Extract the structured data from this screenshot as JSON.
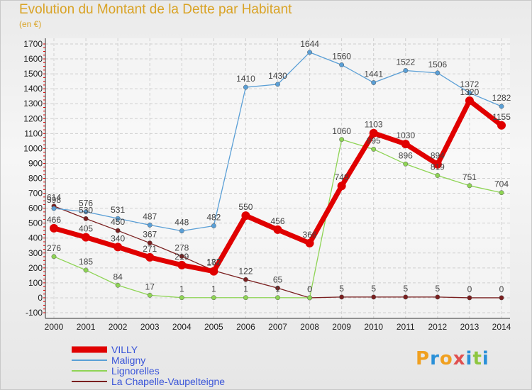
{
  "title": "Evolution du Montant de la Dette par Habitant",
  "subtitle": "(en €)",
  "logo": {
    "text": "Proxiti",
    "colors": [
      "#f0a020",
      "#2a90d8",
      "#f0a020",
      "#e05050",
      "#2a90d8",
      "#8ec640",
      "#2a90d8"
    ]
  },
  "chart_data": {
    "type": "line",
    "title": "Evolution du Montant de la Dette par Habitant",
    "ylabel": "(en €)",
    "x": [
      "2000",
      "2001",
      "2002",
      "2003",
      "2004",
      "2005",
      "2006",
      "2007",
      "2008",
      "2009",
      "2010",
      "2011",
      "2012",
      "2013",
      "2014"
    ],
    "ylim": [
      -100,
      1700
    ],
    "yticks": [
      -100,
      0,
      100,
      200,
      300,
      400,
      500,
      600,
      700,
      800,
      900,
      1000,
      1100,
      1200,
      1300,
      1400,
      1500,
      1600,
      1700
    ],
    "grid": true,
    "legend_position": "bottom-left",
    "series": [
      {
        "name": "VILLY",
        "color": "#e00000",
        "values": [
          466,
          405,
          340,
          271,
          219,
          177,
          550,
          456,
          366,
          749,
          1103,
          1030,
          894,
          1320,
          1155
        ]
      },
      {
        "name": "Maligny",
        "color": "#5a9fd6",
        "values": [
          598,
          576,
          531,
          487,
          448,
          482,
          1410,
          1430,
          1644,
          1560,
          1441,
          1522,
          1506,
          1372,
          1282
        ]
      },
      {
        "name": "Lignorelles",
        "color": "#8ed454",
        "values": [
          276,
          185,
          84,
          17,
          1,
          1,
          1,
          1,
          0,
          1060,
          995,
          896,
          819,
          751,
          704
        ]
      },
      {
        "name": "La Chapelle-Vaupelteigne",
        "color": "#7a1f1f",
        "values": [
          614,
          530,
          450,
          367,
          278,
          182,
          122,
          65,
          0,
          5,
          5,
          5,
          5,
          0,
          0
        ]
      }
    ]
  }
}
